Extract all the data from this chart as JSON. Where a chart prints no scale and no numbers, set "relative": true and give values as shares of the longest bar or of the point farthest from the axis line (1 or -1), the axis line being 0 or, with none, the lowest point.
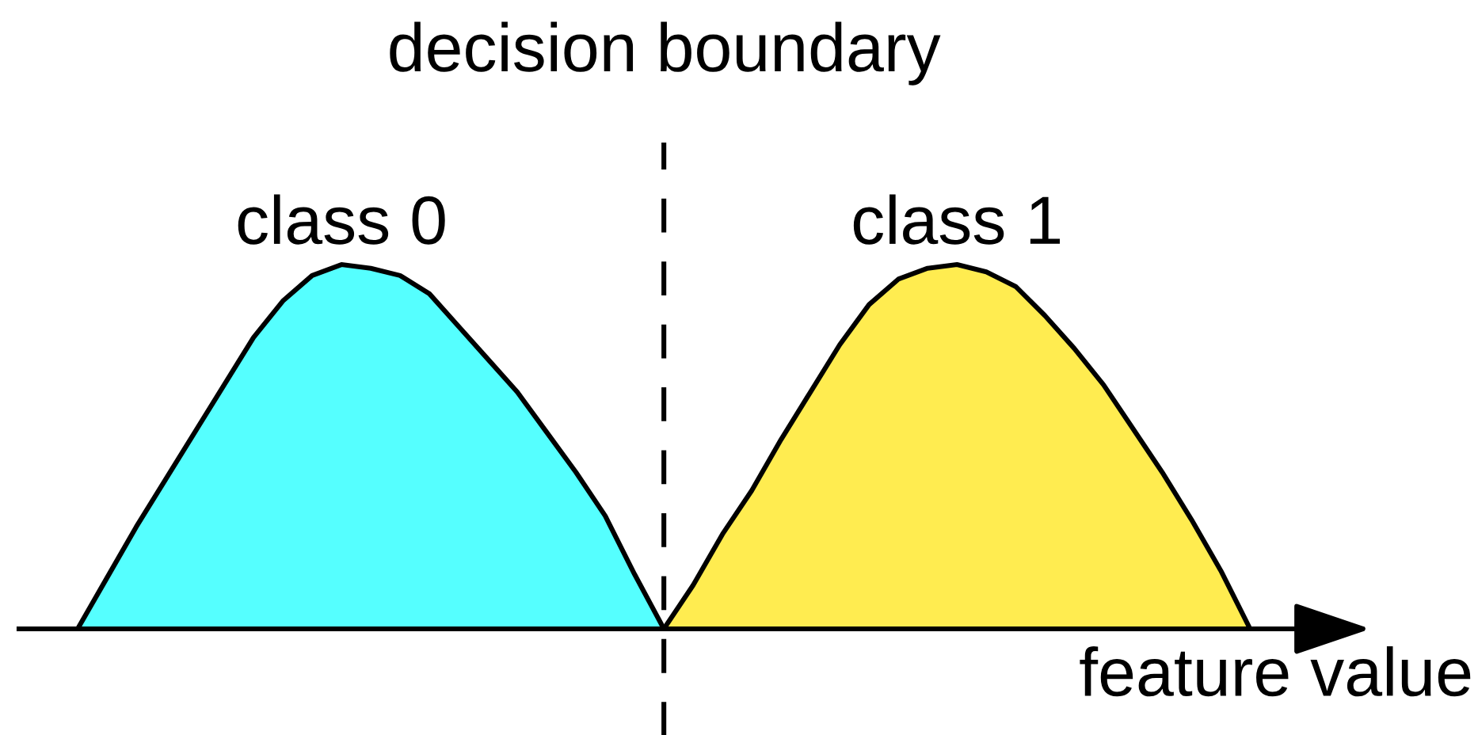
{
  "chart_data": {
    "type": "area",
    "relative": true,
    "xlabel": "feature value",
    "categories": [
      null,
      null,
      null,
      null,
      null,
      null,
      null,
      null,
      null,
      null,
      null,
      null,
      null,
      null,
      null,
      null,
      null,
      null,
      null,
      null,
      null,
      null,
      null,
      null,
      null,
      null,
      null,
      null,
      null,
      null,
      null,
      null,
      null,
      null,
      null,
      null,
      null,
      null,
      null,
      null,
      null
    ],
    "series": [
      {
        "name": "class 0",
        "color": "#55ffff",
        "values": [
          0,
          0.14,
          0.28,
          0.41,
          0.54,
          0.67,
          0.8,
          0.9,
          0.97,
          1,
          0.99,
          0.97,
          0.92,
          0.83,
          0.74,
          0.65,
          0.54,
          0.43,
          0.31,
          0.15,
          0,
          null,
          null,
          null,
          null,
          null,
          null,
          null,
          null,
          null,
          null,
          null,
          null,
          null,
          null,
          null,
          null,
          null,
          null,
          null,
          null
        ]
      },
      {
        "name": "class 1",
        "color": "#ffec50",
        "values": [
          null,
          null,
          null,
          null,
          null,
          null,
          null,
          null,
          null,
          null,
          null,
          null,
          null,
          null,
          null,
          null,
          null,
          null,
          null,
          null,
          0,
          0.12,
          0.26,
          0.38,
          0.52,
          0.65,
          0.78,
          0.89,
          0.96,
          0.99,
          1,
          0.98,
          0.94,
          0.86,
          0.77,
          0.67,
          0.55,
          0.43,
          0.3,
          0.16,
          0
        ]
      }
    ],
    "annotations": [
      "decision boundary"
    ]
  }
}
